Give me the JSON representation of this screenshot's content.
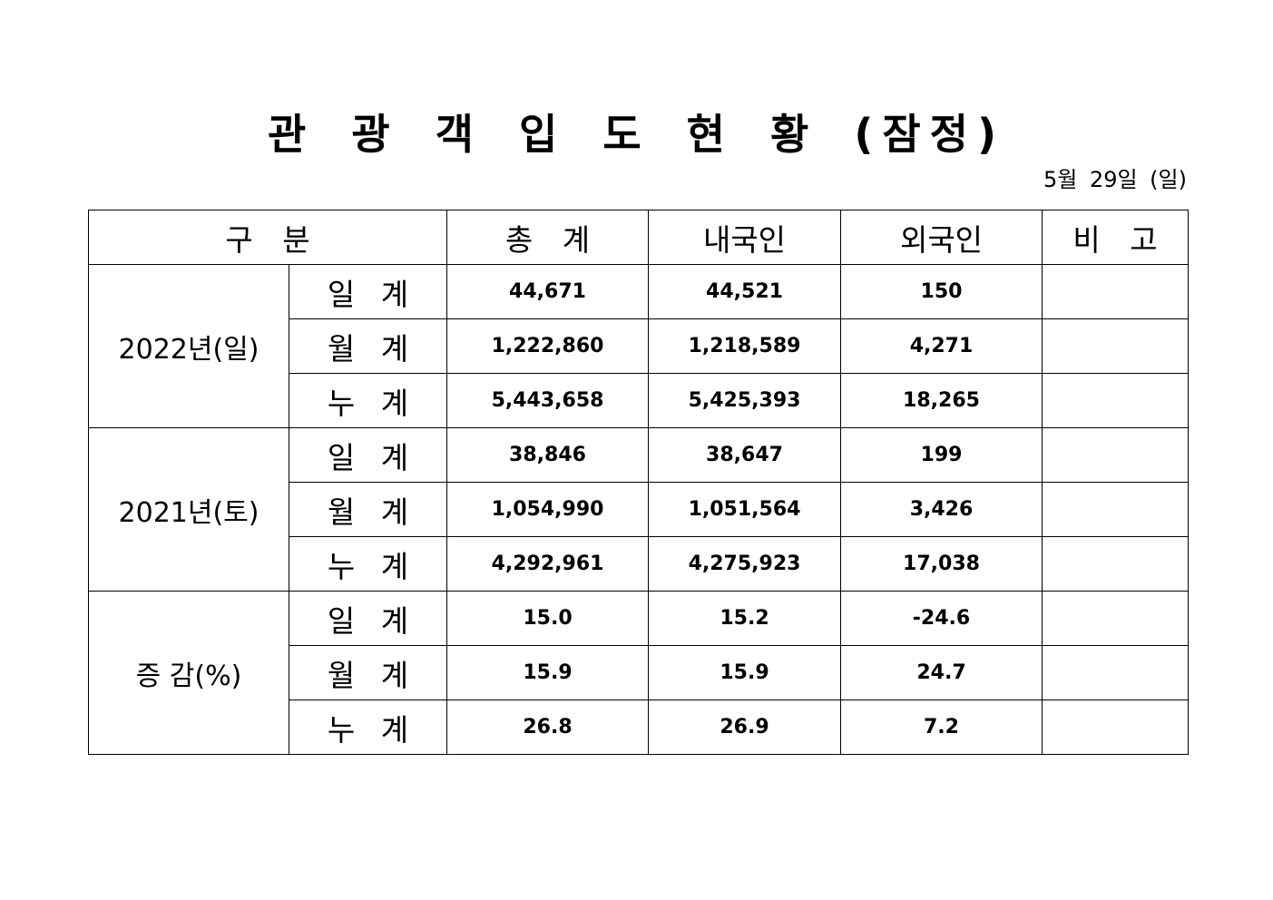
{
  "header": {
    "title": "관 광 객 입 도 현 황 (잠정)",
    "date": "5월 29일 (일)"
  },
  "table": {
    "columns": [
      "구 분",
      "총 계",
      "내국인",
      "외국인",
      "비 고"
    ],
    "groups": [
      {
        "label": "2022년(일)",
        "rows": [
          {
            "label": "일 계",
            "values": [
              "44,671",
              "44,521",
              "150"
            ]
          },
          {
            "label": "월 계",
            "values": [
              "1,222,860",
              "1,218,589",
              "4,271"
            ]
          },
          {
            "label": "누 계",
            "values": [
              "5,443,658",
              "5,425,393",
              "18,265"
            ]
          }
        ]
      },
      {
        "label": "2021년(토)",
        "rows": [
          {
            "label": "일 계",
            "values": [
              "38,846",
              "38,647",
              "199"
            ]
          },
          {
            "label": "월 계",
            "values": [
              "1,054,990",
              "1,051,564",
              "3,426"
            ]
          },
          {
            "label": "누 계",
            "values": [
              "4,292,961",
              "4,275,923",
              "17,038"
            ]
          }
        ]
      },
      {
        "label": "증 감(%)",
        "rows": [
          {
            "label": "일 계",
            "values": [
              "15.0",
              "15.2",
              "-24.6"
            ]
          },
          {
            "label": "월 계",
            "values": [
              "15.9",
              "15.9",
              "24.7"
            ]
          },
          {
            "label": "누 계",
            "values": [
              "26.8",
              "26.9",
              "7.2"
            ]
          }
        ]
      }
    ]
  }
}
